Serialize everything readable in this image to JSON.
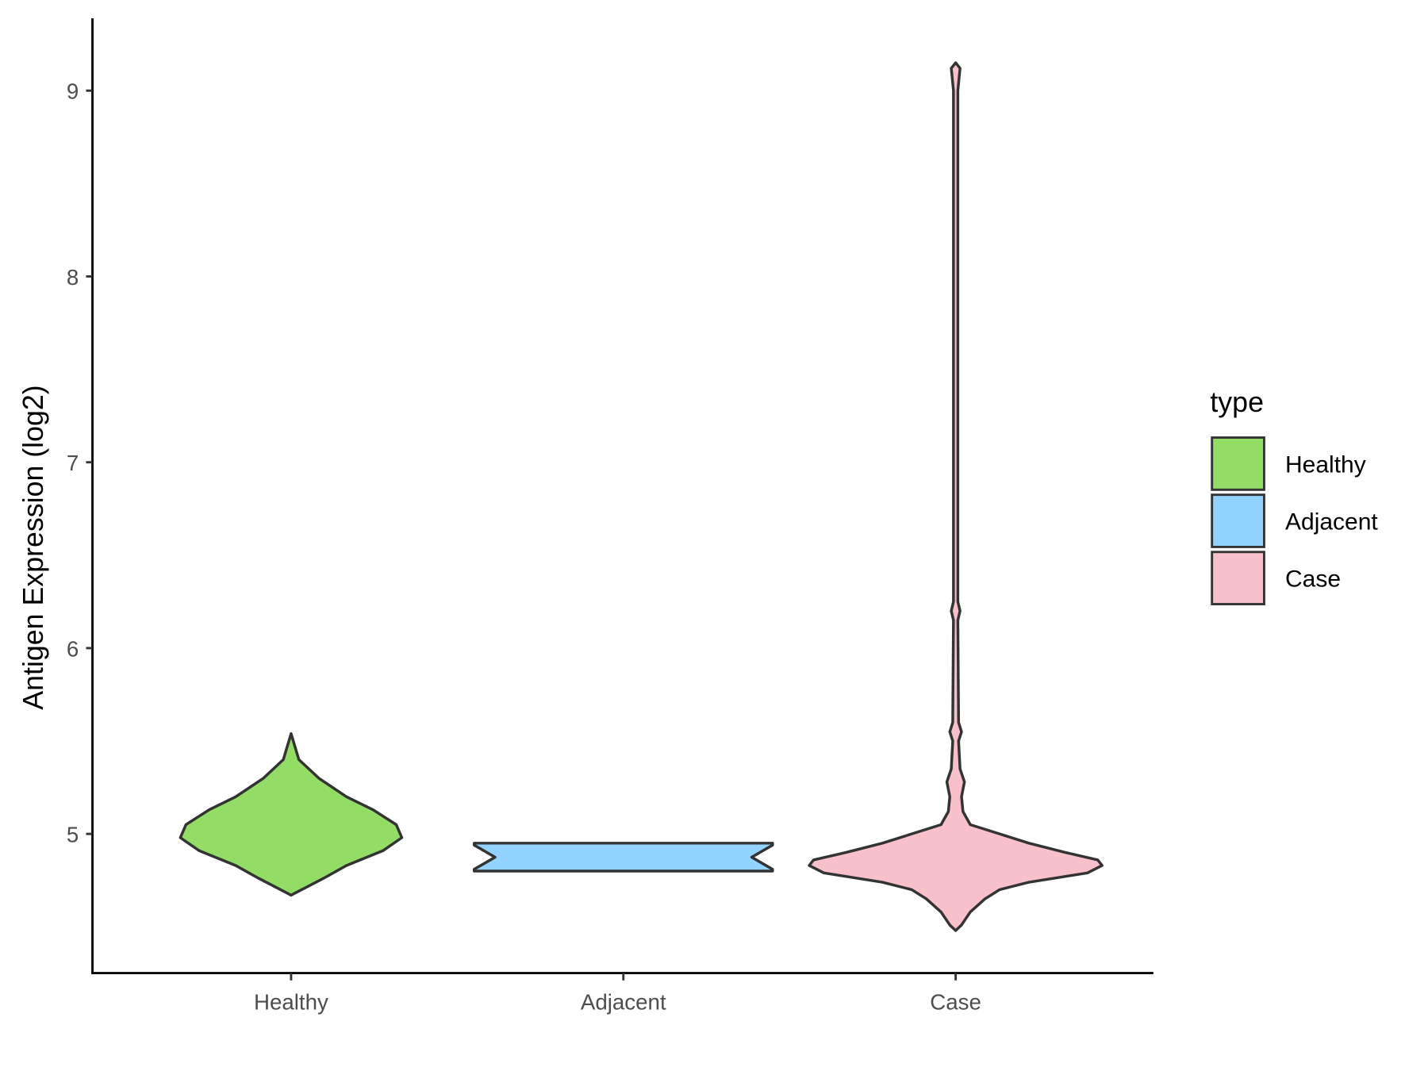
{
  "chart_data": {
    "type": "violin",
    "title": "",
    "xlabel": "",
    "ylabel": "Antigen Expression (log2)",
    "categories": [
      "Healthy",
      "Adjacent",
      "Case"
    ],
    "yticks": [
      5,
      6,
      7,
      8,
      9
    ],
    "ylim": [
      4.25,
      9.4
    ],
    "grid": false,
    "legend": {
      "title": "type",
      "position": "right",
      "entries": [
        "Healthy",
        "Adjacent",
        "Case"
      ]
    },
    "colors": {
      "Healthy": "#93DC66",
      "Adjacent": "#92D3FF",
      "Case": "#F7C0CB",
      "outline": "#333333"
    },
    "series": [
      {
        "name": "Healthy",
        "density_profile": [
          [
            5.54,
            0
          ],
          [
            5.4,
            0.07
          ],
          [
            5.3,
            0.25
          ],
          [
            5.2,
            0.5
          ],
          [
            5.13,
            0.74
          ],
          [
            5.05,
            0.95
          ],
          [
            4.98,
            1
          ],
          [
            4.91,
            0.83
          ],
          [
            4.83,
            0.5
          ],
          [
            4.76,
            0.29
          ],
          [
            4.68,
            0.03
          ],
          [
            4.67,
            0
          ]
        ]
      },
      {
        "name": "Adjacent",
        "density_profile": [
          [
            4.95,
            1
          ],
          [
            4.94,
            1
          ],
          [
            4.875,
            0.86
          ],
          [
            4.81,
            1
          ],
          [
            4.8,
            1
          ]
        ]
      },
      {
        "name": "Case",
        "density_profile": [
          [
            9.15,
            0
          ],
          [
            9.12,
            0.03
          ],
          [
            9.0,
            0.015
          ],
          [
            6.25,
            0.015
          ],
          [
            6.2,
            0.03
          ],
          [
            6.15,
            0.015
          ],
          [
            5.6,
            0.02
          ],
          [
            5.55,
            0.04
          ],
          [
            5.5,
            0.02
          ],
          [
            5.35,
            0.03
          ],
          [
            5.28,
            0.06
          ],
          [
            5.2,
            0.04
          ],
          [
            5.12,
            0.05
          ],
          [
            5.05,
            0.1
          ],
          [
            5.0,
            0.3
          ],
          [
            4.95,
            0.5
          ],
          [
            4.9,
            0.75
          ],
          [
            4.86,
            0.97
          ],
          [
            4.83,
            1
          ],
          [
            4.79,
            0.9
          ],
          [
            4.74,
            0.5
          ],
          [
            4.7,
            0.3
          ],
          [
            4.65,
            0.2
          ],
          [
            4.58,
            0.1
          ],
          [
            4.51,
            0.04
          ],
          [
            4.48,
            0
          ]
        ]
      }
    ]
  }
}
